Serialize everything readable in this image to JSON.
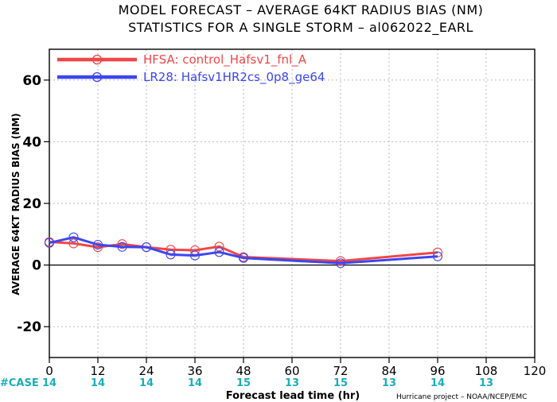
{
  "chart_data": {
    "type": "line",
    "title_line1": "MODEL FORECAST – AVERAGE 64KT RADIUS BIAS (NM)",
    "title_line2": "STATISTICS FOR A SINGLE STORM – al062022_EARL",
    "xlabel": "Forecast lead time (hr)",
    "ylabel": "AVERAGE 64KT RADIUS BIAS (NM)",
    "credit": "Hurricane project – NOAA/NCEP/EMC",
    "xlim": [
      0,
      120
    ],
    "ylim": [
      -30,
      70
    ],
    "xticks": [
      0,
      12,
      24,
      36,
      48,
      60,
      72,
      84,
      96,
      108,
      120
    ],
    "yticks": [
      -20,
      0,
      20,
      40,
      60
    ],
    "grid": true,
    "legend_position": "top-left",
    "case_label": "#CASE",
    "case_counts": [
      {
        "x": 0,
        "n": "14"
      },
      {
        "x": 12,
        "n": "14"
      },
      {
        "x": 24,
        "n": "14"
      },
      {
        "x": 36,
        "n": "14"
      },
      {
        "x": 48,
        "n": "15"
      },
      {
        "x": 60,
        "n": "13"
      },
      {
        "x": 72,
        "n": "15"
      },
      {
        "x": 84,
        "n": "13"
      },
      {
        "x": 96,
        "n": "14"
      },
      {
        "x": 108,
        "n": "13"
      }
    ],
    "series": [
      {
        "name": "HFSA: control_Hafsv1_fnl_A",
        "color": "#f04646",
        "points": [
          [
            0,
            7.5
          ],
          [
            6,
            7.0
          ],
          [
            12,
            5.8
          ],
          [
            18,
            6.8
          ],
          [
            24,
            5.8
          ],
          [
            30,
            5.0
          ],
          [
            36,
            4.8
          ],
          [
            42,
            6.0
          ],
          [
            48,
            2.6
          ],
          [
            72,
            1.3
          ],
          [
            96,
            4.1
          ]
        ]
      },
      {
        "name": "LR28: Hafsv1HR2cs_0p8_ge64",
        "color": "#3c46f0",
        "points": [
          [
            0,
            7.2
          ],
          [
            6,
            9.0
          ],
          [
            12,
            6.6
          ],
          [
            18,
            5.9
          ],
          [
            24,
            5.8
          ],
          [
            30,
            3.4
          ],
          [
            36,
            3.1
          ],
          [
            42,
            4.2
          ],
          [
            48,
            2.3
          ],
          [
            72,
            0.6
          ],
          [
            96,
            2.8
          ]
        ]
      }
    ]
  }
}
